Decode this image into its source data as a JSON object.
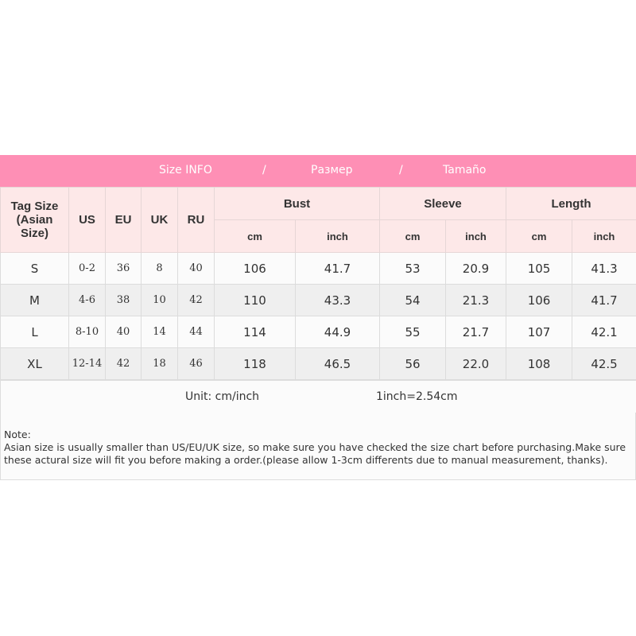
{
  "banner": {
    "title_en": "Size INFO",
    "sep": "/",
    "title_ru": "Размер",
    "title_es": "Tamaño",
    "color": "#fe8fb5"
  },
  "headers": {
    "tag": "Tag Size (Asian Size)",
    "us": "US",
    "eu": "EU",
    "uk": "UK",
    "ru": "RU",
    "bust": "Bust",
    "sleeve": "Sleeve",
    "length": "Length",
    "cm": "cm",
    "inch": "inch"
  },
  "rows": [
    [
      "S",
      "0-2",
      "36",
      "8",
      "40",
      "106",
      "41.7",
      "53",
      "20.9",
      "105",
      "41.3"
    ],
    [
      "M",
      "4-6",
      "38",
      "10",
      "42",
      "110",
      "43.3",
      "54",
      "21.3",
      "106",
      "41.7"
    ],
    [
      "L",
      "8-10",
      "40",
      "14",
      "44",
      "114",
      "44.9",
      "55",
      "21.7",
      "107",
      "42.1"
    ],
    [
      "XL",
      "12-14",
      "42",
      "18",
      "46",
      "118",
      "46.5",
      "56",
      "22.0",
      "108",
      "42.5"
    ]
  ],
  "unit": {
    "label": "Unit: cm/inch",
    "conversion": "1inch=2.54cm"
  },
  "note": {
    "title": "Note:",
    "text": "Asian size is usually smaller than US/EU/UK size, so make sure you have checked the size chart before purchasing.Make sure these actural size will fit you before making a order.(please allow 1-3cm differents due to manual measurement, thanks)."
  }
}
